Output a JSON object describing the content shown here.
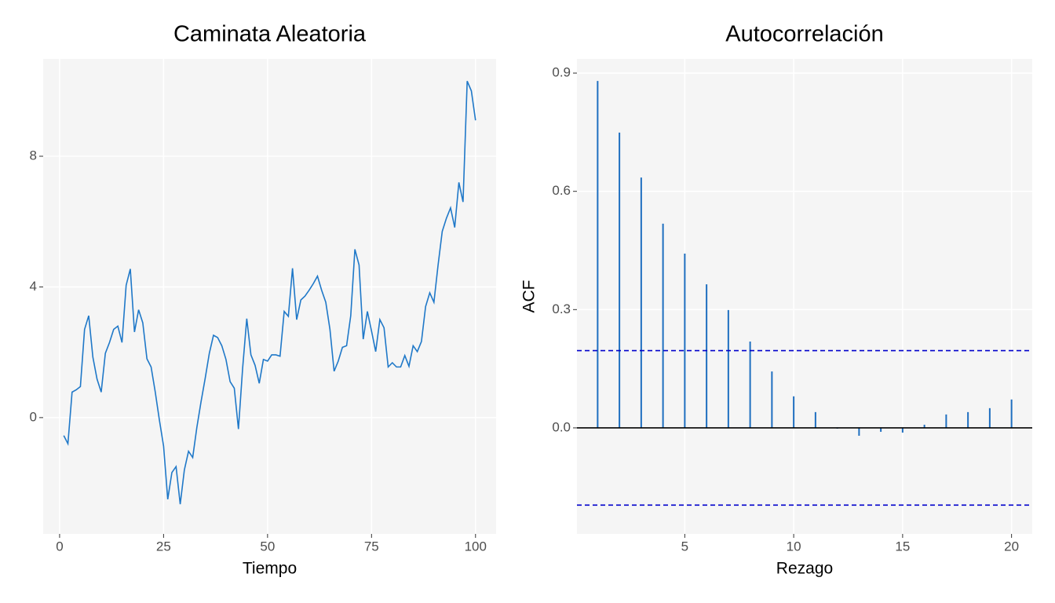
{
  "chart_data": [
    {
      "type": "line",
      "title": "Caminata Aleatoria",
      "x_label": "Tiempo",
      "x": [
        1,
        2,
        3,
        4,
        5,
        6,
        7,
        8,
        9,
        10,
        11,
        12,
        13,
        14,
        15,
        16,
        17,
        18,
        19,
        20,
        21,
        22,
        23,
        24,
        25,
        26,
        27,
        28,
        29,
        30,
        31,
        32,
        33,
        34,
        35,
        36,
        37,
        38,
        39,
        40,
        41,
        42,
        43,
        44,
        45,
        46,
        47,
        48,
        49,
        50,
        51,
        52,
        53,
        54,
        55,
        56,
        57,
        58,
        59,
        60,
        61,
        62,
        63,
        64,
        65,
        66,
        67,
        68,
        69,
        70,
        71,
        72,
        73,
        74,
        75,
        76,
        77,
        78,
        79,
        80,
        81,
        82,
        83,
        84,
        85,
        86,
        87,
        88,
        89,
        90,
        91,
        92,
        93,
        94,
        95,
        96,
        97,
        98,
        99,
        100
      ],
      "series": [
        {
          "color": "#1f78c8",
          "values": [
            -0.55,
            -0.8,
            0.78,
            0.85,
            0.95,
            2.7,
            3.12,
            1.85,
            1.18,
            0.78,
            1.97,
            2.3,
            2.7,
            2.8,
            2.3,
            4.05,
            4.55,
            2.62,
            3.3,
            2.9,
            1.8,
            1.55,
            0.78,
            -0.08,
            -0.87,
            -2.5,
            -1.68,
            -1.5,
            -2.65,
            -1.6,
            -1.03,
            -1.22,
            -0.3,
            0.48,
            1.2,
            1.97,
            2.52,
            2.45,
            2.2,
            1.78,
            1.1,
            0.9,
            -0.35,
            1.5,
            3.03,
            1.92,
            1.6,
            1.05,
            1.78,
            1.73,
            1.92,
            1.92,
            1.88,
            3.25,
            3.1,
            4.57,
            3.0,
            3.6,
            3.72,
            3.9,
            4.1,
            4.33,
            3.9,
            3.53,
            2.7,
            1.42,
            1.73,
            2.15,
            2.2,
            3.12,
            5.15,
            4.67,
            2.4,
            3.25,
            2.65,
            2.02,
            3.0,
            2.75,
            1.55,
            1.68,
            1.55,
            1.55,
            1.9,
            1.57,
            2.2,
            2.02,
            2.33,
            3.4,
            3.82,
            3.53,
            4.67,
            5.7,
            6.1,
            6.42,
            5.82,
            7.2,
            6.6,
            10.3,
            10.0,
            9.1
          ]
        }
      ],
      "xlim": [
        -3.95,
        104.95
      ],
      "xticks": [
        0,
        25,
        50,
        75,
        100
      ],
      "ylim": [
        -3.56,
        10.98
      ],
      "yticks": [
        0,
        4,
        8
      ],
      "grid": true
    },
    {
      "type": "bar",
      "title": "Autocorrelación",
      "x_label": "Rezago",
      "y_label": "ACF",
      "x": [
        1,
        2,
        3,
        4,
        5,
        6,
        7,
        8,
        9,
        10,
        11,
        12,
        13,
        14,
        15,
        16,
        17,
        18,
        19,
        20
      ],
      "values": [
        0.88,
        0.749,
        0.635,
        0.518,
        0.442,
        0.364,
        0.299,
        0.219,
        0.143,
        0.08,
        0.04,
        -0.002,
        -0.02,
        -0.01,
        -0.012,
        0.008,
        0.034,
        0.04,
        0.05,
        0.072
      ],
      "color": "#1f6fc0",
      "hlines": [
        {
          "value": 0,
          "color": "#000000",
          "dashed": false
        },
        {
          "value": 0.196,
          "color": "#0000cc",
          "dashed": true
        },
        {
          "value": -0.196,
          "color": "#0000cc",
          "dashed": true
        }
      ],
      "xlim": [
        0.05,
        20.95
      ],
      "xticks": [
        5,
        10,
        15,
        20
      ],
      "ylim": [
        -0.269,
        0.936
      ],
      "yticks": [
        {
          "value": 0,
          "label": "0.0"
        },
        0.3,
        0.6,
        0.9
      ],
      "grid": true
    }
  ]
}
